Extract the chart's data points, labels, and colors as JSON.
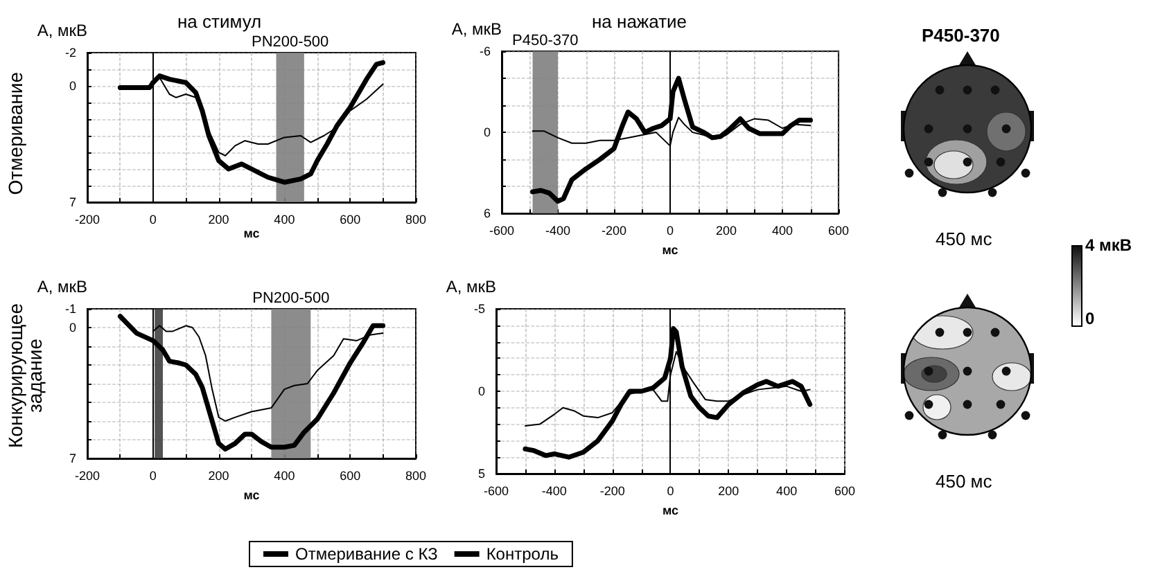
{
  "chart_data": [
    {
      "type": "line",
      "title": "на стимул",
      "xlabel": "мс",
      "ylabel": "А, мкВ",
      "annotations": [
        "Отмеривание"
      ],
      "legend": "bottom",
      "grid": true,
      "xlim": [
        -200,
        800
      ],
      "xticks": [
        -200,
        {
          "value": -100,
          "label": null
        },
        0,
        {
          "value": 100,
          "label": null
        },
        200,
        {
          "value": 300,
          "label": null
        },
        400,
        {
          "value": 500,
          "label": null
        },
        600,
        {
          "value": 700,
          "label": null
        },
        800
      ],
      "ylim": [
        7,
        -2
      ],
      "yticks": [
        -2,
        {
          "value": -1,
          "label": null
        },
        0,
        {
          "value": 1,
          "label": null
        },
        {
          "value": 2,
          "label": null
        },
        {
          "value": 3,
          "label": null
        },
        {
          "value": 4,
          "label": null
        },
        {
          "value": 5,
          "label": null
        },
        {
          "value": 6,
          "label": null
        },
        7
      ],
      "ref_lines": [
        {
          "axis": "x",
          "value": 0,
          "label": null
        }
      ],
      "bands": [
        {
          "axis": "x",
          "from": 375,
          "to": 460,
          "label": "PN200-500",
          "color": "#808080"
        }
      ],
      "series": [
        {
          "name": "Отмеривание с КЗ",
          "color": "#000000",
          "x": [
            -100,
            -50,
            -10,
            0,
            20,
            50,
            100,
            130,
            150,
            170,
            200,
            230,
            270,
            300,
            350,
            400,
            450,
            480,
            500,
            530,
            560,
            600,
            650,
            680,
            700
          ],
          "values": [
            0.1,
            0.1,
            0.1,
            -0.2,
            -0.6,
            -0.4,
            -0.2,
            0.4,
            1.5,
            3,
            4.5,
            5,
            4.7,
            5,
            5.5,
            5.8,
            5.6,
            5.3,
            4.5,
            3.5,
            2.4,
            1.3,
            -0.4,
            -1.3,
            -1.4
          ]
        },
        {
          "name": "Контроль",
          "color": "#000000",
          "x": [
            0,
            20,
            50,
            70,
            100,
            130,
            150,
            170,
            200,
            220,
            250,
            280,
            320,
            350,
            400,
            450,
            480,
            520,
            560,
            600,
            650,
            700
          ],
          "values": [
            -0.2,
            -0.5,
            0.5,
            0.7,
            0.5,
            0.7,
            1.5,
            2.7,
            4,
            4.2,
            3.6,
            3.3,
            3.5,
            3.5,
            3.1,
            3,
            3.4,
            3,
            2.5,
            1.5,
            0.8,
            -0.1
          ]
        }
      ]
    },
    {
      "type": "line",
      "title": "на нажатие",
      "xlabel": "мс",
      "ylabel": "А, мкВ",
      "grid": true,
      "xlim": [
        -600,
        600
      ],
      "xticks": [
        -600,
        {
          "value": -500,
          "label": null
        },
        -400,
        {
          "value": -300,
          "label": null
        },
        -200,
        {
          "value": -100,
          "label": null
        },
        0,
        {
          "value": 100,
          "label": null
        },
        200,
        {
          "value": 300,
          "label": null
        },
        400,
        {
          "value": 500,
          "label": null
        },
        600
      ],
      "ylim": [
        6,
        -6
      ],
      "yticks": [
        -6,
        {
          "value": -4,
          "label": null
        },
        {
          "value": -2,
          "label": null
        },
        0,
        {
          "value": 2,
          "label": null
        },
        {
          "value": 4,
          "label": null
        },
        6
      ],
      "ref_lines": [
        {
          "axis": "x",
          "value": 0,
          "label": null
        }
      ],
      "bands": [
        {
          "axis": "x",
          "from": -490,
          "to": -400,
          "label": "P450-370",
          "color": "#808080"
        }
      ],
      "series": [
        {
          "color": "#000000",
          "x": [
            -490,
            -460,
            -430,
            -400,
            -380,
            -350,
            -300,
            -250,
            -200,
            -170,
            -150,
            -120,
            -90,
            -60,
            -30,
            0,
            10,
            30,
            50,
            80,
            120,
            150,
            180,
            210,
            250,
            280,
            320,
            360,
            400,
            430,
            460,
            500
          ],
          "values": [
            4.4,
            4.3,
            4.5,
            5.1,
            4.9,
            3.5,
            2.7,
            2,
            1.2,
            -0.5,
            -1.5,
            -1,
            0,
            -0.3,
            -0.5,
            -1,
            -3,
            -4,
            -2.5,
            -0.4,
            0,
            0.4,
            0.3,
            -0.2,
            -1,
            -0.3,
            0.1,
            0.1,
            0.1,
            -0.5,
            -0.9,
            -0.9
          ]
        },
        {
          "color": "#000000",
          "x": [
            -490,
            -450,
            -400,
            -350,
            -300,
            -250,
            -200,
            -150,
            -100,
            -50,
            0,
            10,
            30,
            50,
            80,
            120,
            160,
            200,
            250,
            300,
            350,
            400,
            440,
            500
          ],
          "values": [
            -0.1,
            -0.1,
            0.4,
            0.8,
            0.8,
            0.6,
            0.6,
            0.4,
            0.2,
            0,
            1,
            0,
            -1.1,
            -0.6,
            0,
            0.2,
            0.5,
            0.2,
            -0.6,
            -1,
            -0.9,
            -0.3,
            -0.6,
            -0.5
          ]
        }
      ]
    },
    {
      "type": "line",
      "xlabel": "мс",
      "ylabel": "А, мкВ",
      "annotations": [
        "Конкурирующее задание"
      ],
      "grid": true,
      "xlim": [
        -200,
        800
      ],
      "xticks": [
        -200,
        {
          "value": -100,
          "label": null
        },
        0,
        {
          "value": 100,
          "label": null
        },
        200,
        {
          "value": 300,
          "label": null
        },
        400,
        {
          "value": 500,
          "label": null
        },
        600,
        {
          "value": 700,
          "label": null
        },
        800
      ],
      "ylim": [
        7,
        -1
      ],
      "yticks": [
        -1,
        0,
        {
          "value": 1,
          "label": null
        },
        {
          "value": 2,
          "label": null
        },
        {
          "value": 3,
          "label": null
        },
        {
          "value": 4,
          "label": null
        },
        {
          "value": 5,
          "label": null
        },
        {
          "value": 6,
          "label": null
        },
        7
      ],
      "ref_lines": [
        {
          "axis": "x",
          "value": 0,
          "label": null
        }
      ],
      "bands": [
        {
          "axis": "x",
          "from": 5,
          "to": 30,
          "label": null,
          "color": "#404040"
        },
        {
          "axis": "x",
          "from": 360,
          "to": 480,
          "label": "PN200-500",
          "color": "#808080"
        }
      ],
      "series": [
        {
          "color": "#000000",
          "x": [
            -100,
            -50,
            0,
            30,
            50,
            80,
            100,
            130,
            150,
            180,
            200,
            220,
            250,
            280,
            300,
            330,
            360,
            400,
            430,
            460,
            500,
            550,
            600,
            640,
            670,
            700
          ],
          "values": [
            -0.6,
            0.3,
            0.7,
            1.2,
            1.8,
            1.9,
            2,
            2.5,
            3.2,
            5,
            6.2,
            6.5,
            6.2,
            5.7,
            5.7,
            6.1,
            6.4,
            6.4,
            6.3,
            5.6,
            4.9,
            3.5,
            1.9,
            0.8,
            -0.1,
            -0.1
          ]
        },
        {
          "color": "#000000",
          "x": [
            0,
            20,
            40,
            60,
            100,
            120,
            140,
            160,
            180,
            200,
            220,
            250,
            300,
            360,
            400,
            430,
            470,
            500,
            550,
            580,
            620,
            660,
            700
          ],
          "values": [
            0.2,
            -0.1,
            0.2,
            0.2,
            -0.1,
            0,
            0.5,
            1.5,
            3.3,
            4.8,
            5,
            4.8,
            4.5,
            4.3,
            3.3,
            3.1,
            3,
            2.3,
            1.5,
            0.6,
            0.7,
            0.4,
            0.3
          ]
        }
      ]
    },
    {
      "type": "line",
      "xlabel": "мс",
      "ylabel": "А, мкВ",
      "grid": true,
      "xlim": [
        -600,
        600
      ],
      "xticks": [
        -600,
        {
          "value": -500,
          "label": null
        },
        -400,
        {
          "value": -300,
          "label": null
        },
        -200,
        {
          "value": -100,
          "label": null
        },
        0,
        {
          "value": 100,
          "label": null
        },
        200,
        {
          "value": 300,
          "label": null
        },
        400,
        {
          "value": 500,
          "label": null
        },
        600
      ],
      "ylim": [
        5,
        -5
      ],
      "yticks": [
        -5,
        {
          "value": -4,
          "label": null
        },
        {
          "value": -3,
          "label": null
        },
        {
          "value": -2,
          "label": null
        },
        {
          "value": -1,
          "label": null
        },
        0,
        {
          "value": 1,
          "label": null
        },
        {
          "value": 2,
          "label": null
        },
        {
          "value": 3,
          "label": null
        },
        {
          "value": 4,
          "label": null
        },
        5
      ],
      "ref_lines": [
        {
          "axis": "x",
          "value": 0,
          "label": null
        }
      ],
      "series": [
        {
          "color": "#000000",
          "x": [
            -500,
            -470,
            -430,
            -400,
            -350,
            -300,
            -250,
            -200,
            -170,
            -140,
            -100,
            -60,
            -20,
            0,
            10,
            20,
            40,
            70,
            100,
            130,
            160,
            200,
            250,
            300,
            330,
            370,
            420,
            450,
            480
          ],
          "values": [
            3.5,
            3.6,
            3.9,
            3.8,
            4,
            3.7,
            3,
            1.8,
            0.8,
            0,
            0,
            -0.2,
            -0.8,
            -2,
            -3.8,
            -3.6,
            -1.5,
            0.3,
            1,
            1.5,
            1.6,
            0.8,
            0.1,
            -0.4,
            -0.6,
            -0.3,
            -0.6,
            -0.3,
            0.8
          ]
        },
        {
          "color": "#000000",
          "x": [
            -500,
            -450,
            -400,
            -370,
            -330,
            -300,
            -250,
            -200,
            -150,
            -100,
            -60,
            -30,
            -10,
            0,
            20,
            50,
            80,
            120,
            160,
            200,
            250,
            300,
            350,
            400,
            450,
            480
          ],
          "values": [
            2.1,
            2,
            1.4,
            1,
            1.2,
            1.5,
            1.6,
            1.3,
            0.2,
            0,
            -0.1,
            0.6,
            0.6,
            -1,
            -2.4,
            -1.3,
            -0.5,
            0.5,
            0.6,
            0.6,
            0.2,
            -0.1,
            -0.2,
            -0.3,
            0,
            -0.1
          ]
        }
      ]
    },
    {
      "type": "other",
      "title": "P450-370",
      "annotations": [
        "450 мс",
        "450 мс",
        "4 мкВ",
        "0"
      ]
    }
  ]
}
